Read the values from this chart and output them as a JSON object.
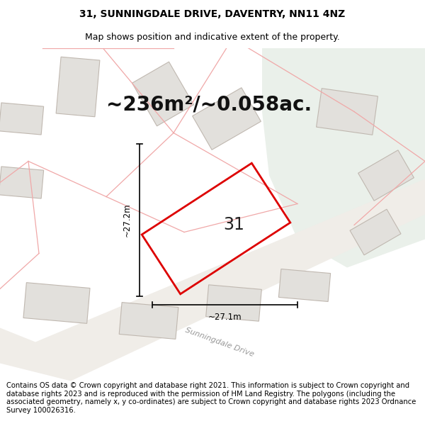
{
  "title": "31, SUNNINGDALE DRIVE, DAVENTRY, NN11 4NZ",
  "subtitle": "Map shows position and indicative extent of the property.",
  "area_label": "~236m²/~0.058ac.",
  "plot_number": "31",
  "dim_width": "~27.1m",
  "dim_height": "~27.2m",
  "footer": "Contains OS data © Crown copyright and database right 2021. This information is subject to Crown copyright and database rights 2023 and is reproduced with the permission of HM Land Registry. The polygons (including the associated geometry, namely x, y co-ordinates) are subject to Crown copyright and database rights 2023 Ordnance Survey 100026316.",
  "bg_color": "#f7f6f4",
  "green_area_color": "#eaf0ea",
  "plot_edge_color": "#dd0000",
  "neighbor_fill": "#e2e0dc",
  "neighbor_edge": "#c0b8b0",
  "pink_line": "#f0a8a8",
  "title_fontsize": 10,
  "subtitle_fontsize": 9,
  "area_fontsize": 20,
  "footer_fontsize": 7.2
}
